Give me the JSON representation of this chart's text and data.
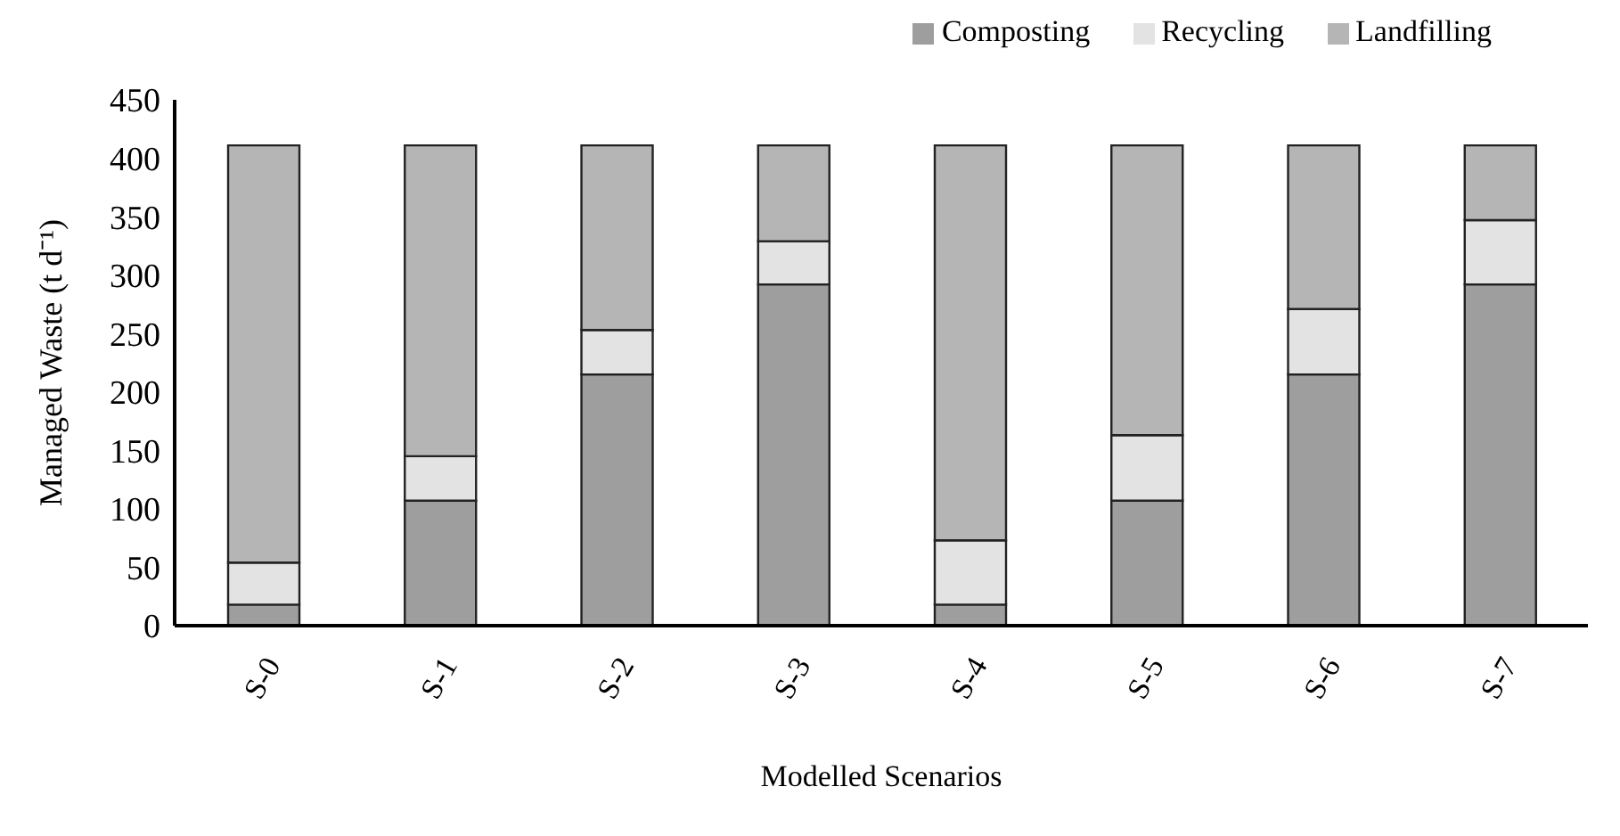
{
  "chart_data": {
    "type": "bar",
    "stacked": true,
    "xlabel": "Modelled Scenarios",
    "ylabel": "Managed Waste (t d⁻¹)",
    "categories": [
      "S-0",
      "S-1",
      "S-2",
      "S-3",
      "S-4",
      "S-5",
      "S-6",
      "S-7"
    ],
    "series": [
      {
        "name": "Composting",
        "color": "#9e9e9e",
        "values": [
          18,
          107,
          215,
          292,
          18,
          107,
          215,
          292
        ]
      },
      {
        "name": "Recycling",
        "color": "#e3e3e3",
        "values": [
          36,
          38,
          38,
          37,
          55,
          56,
          56,
          55
        ]
      },
      {
        "name": "Landfilling",
        "color": "#b5b5b5",
        "values": [
          357,
          266,
          158,
          82,
          338,
          248,
          140,
          64
        ]
      }
    ],
    "ylim": [
      0,
      450
    ],
    "yticks": [
      0,
      50,
      100,
      150,
      200,
      250,
      300,
      350,
      400,
      450
    ],
    "grid": false,
    "legend": "top right"
  }
}
